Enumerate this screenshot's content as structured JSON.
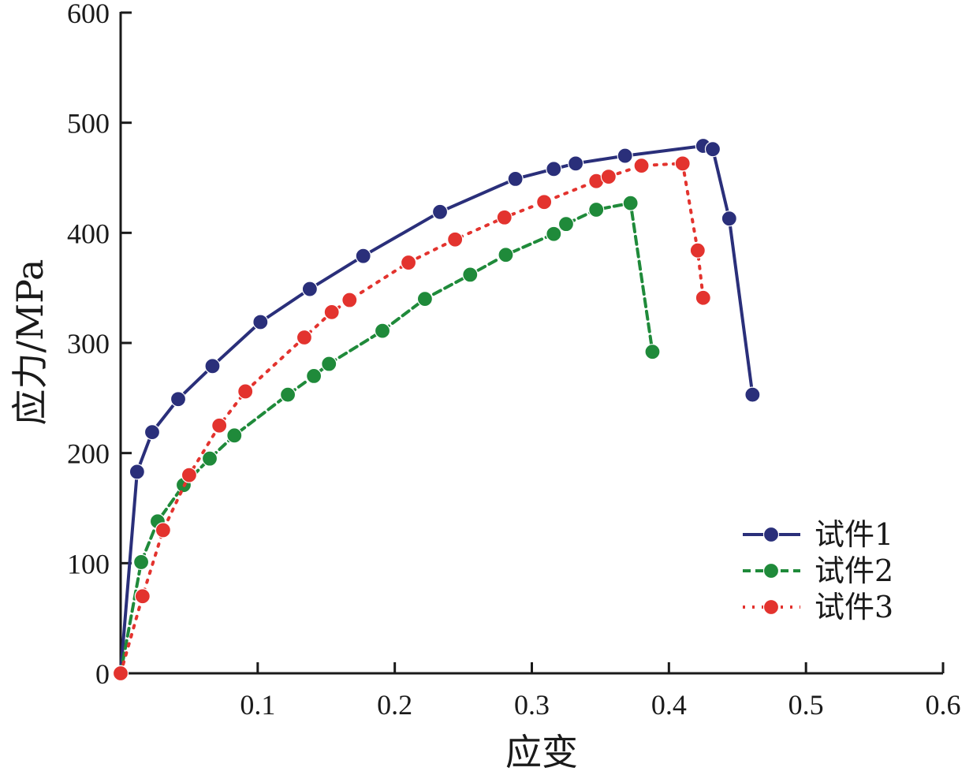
{
  "chart_data": {
    "type": "line",
    "title": "",
    "xlabel": "应变",
    "ylabel": "应力/MPa",
    "xlim": [
      0,
      0.6
    ],
    "ylim": [
      0,
      600
    ],
    "xticks": [
      0.1,
      0.2,
      0.3,
      0.4,
      0.5,
      0.6
    ],
    "xtick_labels": [
      "0.1",
      "0.2",
      "0.3",
      "0.4",
      "0.5",
      "0.6"
    ],
    "yticks": [
      0,
      100,
      200,
      300,
      400,
      500,
      600
    ],
    "ytick_labels": [
      "0",
      "100",
      "200",
      "300",
      "400",
      "500",
      "600"
    ],
    "grid": false,
    "legend_position": "bottom-right",
    "series": [
      {
        "name": "试件1",
        "color": "#2a2f7a",
        "line_style": "solid",
        "marker": "circle",
        "x": [
          0.0,
          0.012,
          0.023,
          0.042,
          0.067,
          0.102,
          0.138,
          0.177,
          0.233,
          0.288,
          0.316,
          0.332,
          0.368,
          0.425,
          0.432,
          0.444,
          0.461
        ],
        "y": [
          0,
          183,
          219,
          249,
          279,
          319,
          349,
          379,
          419,
          449,
          458,
          463,
          470,
          479,
          476,
          413,
          253
        ]
      },
      {
        "name": "试件2",
        "color": "#1f8a3a",
        "line_style": "dashed",
        "marker": "circle",
        "x": [
          0.0,
          0.015,
          0.027,
          0.046,
          0.065,
          0.083,
          0.122,
          0.141,
          0.152,
          0.191,
          0.222,
          0.255,
          0.281,
          0.316,
          0.325,
          0.347,
          0.372,
          0.388
        ],
        "y": [
          0,
          101,
          138,
          171,
          195,
          216,
          253,
          270,
          281,
          311,
          340,
          362,
          380,
          399,
          408,
          421,
          427,
          292
        ]
      },
      {
        "name": "试件3",
        "color": "#e3332e",
        "line_style": "dotted",
        "marker": "circle",
        "x": [
          0.0,
          0.016,
          0.031,
          0.05,
          0.072,
          0.091,
          0.134,
          0.154,
          0.167,
          0.21,
          0.244,
          0.28,
          0.309,
          0.347,
          0.356,
          0.38,
          0.41,
          0.421,
          0.425
        ],
        "y": [
          0,
          70,
          130,
          180,
          225,
          256,
          305,
          328,
          339,
          373,
          394,
          414,
          428,
          447,
          451,
          461,
          463,
          384,
          341
        ]
      }
    ]
  }
}
